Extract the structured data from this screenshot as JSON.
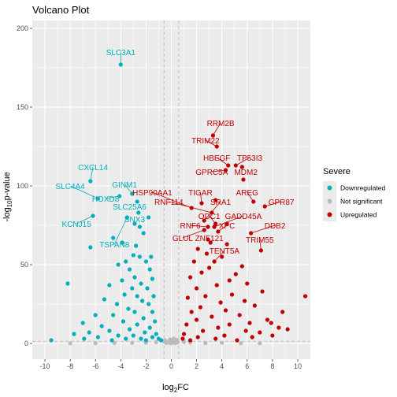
{
  "chart_data": {
    "type": "scatter",
    "title": "Volcano Plot",
    "xlabel": "log2FC",
    "ylabel": "-log10p-value",
    "xlim": [
      -11,
      11
    ],
    "ylim": [
      -10,
      205
    ],
    "x_ticks": [
      -10,
      -8,
      -6,
      -4,
      -2,
      0,
      2,
      4,
      6,
      8,
      10
    ],
    "y_ticks": [
      0,
      50,
      100,
      150,
      200
    ],
    "thresholds": {
      "log2fc": [
        -0.58,
        0.58
      ],
      "pvalue_line": 1.3
    },
    "grid": true,
    "legend": {
      "title": "Severe",
      "position": "right",
      "entries": [
        {
          "name": "Downregulated",
          "color": "#00AFBB"
        },
        {
          "name": "Not significant",
          "color": "#BBBBBB"
        },
        {
          "name": "Upregulated",
          "color": "#C00000"
        }
      ]
    },
    "colors": {
      "down": "#00AFBB",
      "ns": "#BBBBBB",
      "up": "#C00000",
      "panel": "#EBEBEB",
      "grid": "#FFFFFF"
    },
    "series": [
      {
        "name": "Downregulated",
        "color": "#00AFBB",
        "points": [
          [
            -4.0,
            177
          ],
          [
            -6.4,
            103
          ],
          [
            -3.1,
            95
          ],
          [
            -4.1,
            93.5
          ],
          [
            -5.8,
            92
          ],
          [
            -2.7,
            90
          ],
          [
            -6.2,
            81
          ],
          [
            -2.6,
            83
          ],
          [
            -3.5,
            80
          ],
          [
            -2.9,
            76
          ],
          [
            -6.4,
            61
          ],
          [
            -4.6,
            67
          ],
          [
            -2.5,
            74
          ],
          [
            -3.9,
            64
          ],
          [
            -2.8,
            62
          ],
          [
            -1.8,
            80
          ],
          [
            -2.2,
            70
          ],
          [
            -3.0,
            56
          ],
          [
            -2.5,
            55
          ],
          [
            -3.6,
            52
          ],
          [
            -4.2,
            50
          ],
          [
            -1.6,
            55
          ],
          [
            -2.0,
            52
          ],
          [
            -3.3,
            47
          ],
          [
            -1.7,
            47
          ],
          [
            -2.9,
            42
          ],
          [
            -3.9,
            40
          ],
          [
            -1.5,
            41
          ],
          [
            -2.4,
            38
          ],
          [
            -4.9,
            37
          ],
          [
            -3.1,
            35
          ],
          [
            -1.9,
            35
          ],
          [
            -2.7,
            30
          ],
          [
            -3.7,
            31
          ],
          [
            -1.4,
            30
          ],
          [
            -2.3,
            27
          ],
          [
            -5.3,
            28
          ],
          [
            -4.3,
            25
          ],
          [
            -1.8,
            25
          ],
          [
            -3.4,
            22
          ],
          [
            -2.9,
            20
          ],
          [
            -1.5,
            20
          ],
          [
            -6.0,
            18
          ],
          [
            -4.6,
            18
          ],
          [
            -2.2,
            16
          ],
          [
            -3.8,
            14
          ],
          [
            -1.3,
            14
          ],
          [
            -7.0,
            13
          ],
          [
            -2.7,
            12
          ],
          [
            -5.5,
            11
          ],
          [
            -1.7,
            10
          ],
          [
            -3.3,
            9
          ],
          [
            -4.9,
            8
          ],
          [
            -2.1,
            7
          ],
          [
            -8.2,
            38
          ],
          [
            -1.2,
            6
          ],
          [
            -6.5,
            7
          ],
          [
            -3.0,
            5
          ],
          [
            -1.5,
            4
          ],
          [
            -4.2,
            5
          ],
          [
            -7.7,
            6
          ],
          [
            -2.4,
            3
          ],
          [
            -5.8,
            4
          ],
          [
            -1.0,
            3
          ],
          [
            -3.6,
            3
          ],
          [
            -0.8,
            2
          ],
          [
            -9.5,
            2
          ],
          [
            -6.9,
            3
          ],
          [
            -2.0,
            2
          ],
          [
            -4.7,
            2
          ]
        ]
      },
      {
        "name": "Upregulated",
        "color": "#C00000",
        "points": [
          [
            3.3,
            132
          ],
          [
            3.6,
            125
          ],
          [
            4.5,
            113
          ],
          [
            5.1,
            113
          ],
          [
            5.6,
            112
          ],
          [
            4.3,
            110
          ],
          [
            5.7,
            104
          ],
          [
            6.5,
            90
          ],
          [
            7.4,
            87
          ],
          [
            3.5,
            91
          ],
          [
            2.4,
            89
          ],
          [
            1.6,
            86
          ],
          [
            3.2,
            83
          ],
          [
            2.6,
            78
          ],
          [
            3.5,
            76
          ],
          [
            3.4,
            74
          ],
          [
            2.9,
            74
          ],
          [
            4.4,
            76
          ],
          [
            2.6,
            72
          ],
          [
            3.7,
            71
          ],
          [
            6.3,
            70
          ],
          [
            2.9,
            66
          ],
          [
            3.1,
            64
          ],
          [
            4.4,
            63
          ],
          [
            7.1,
            59
          ],
          [
            3.4,
            52
          ],
          [
            10.6,
            30
          ],
          [
            5.6,
            49
          ],
          [
            7.9,
            13
          ],
          [
            8.5,
            10
          ],
          [
            2.1,
            60
          ],
          [
            2.8,
            57
          ],
          [
            4.0,
            55
          ],
          [
            1.8,
            52
          ],
          [
            3.0,
            48
          ],
          [
            5.1,
            44
          ],
          [
            2.4,
            45
          ],
          [
            4.6,
            40
          ],
          [
            1.5,
            42
          ],
          [
            6.0,
            38
          ],
          [
            3.6,
            37
          ],
          [
            2.0,
            35
          ],
          [
            7.2,
            33
          ],
          [
            4.8,
            31
          ],
          [
            2.7,
            30
          ],
          [
            1.3,
            29
          ],
          [
            5.8,
            27
          ],
          [
            3.9,
            26
          ],
          [
            6.6,
            24
          ],
          [
            2.3,
            23
          ],
          [
            4.3,
            21
          ],
          [
            8.8,
            20
          ],
          [
            1.6,
            20
          ],
          [
            5.4,
            18
          ],
          [
            3.2,
            17
          ],
          [
            7.6,
            15
          ],
          [
            2.0,
            15
          ],
          [
            6.2,
            13
          ],
          [
            4.6,
            12
          ],
          [
            1.2,
            12
          ],
          [
            9.2,
            9
          ],
          [
            3.7,
            10
          ],
          [
            5.9,
            8
          ],
          [
            2.5,
            8
          ],
          [
            7.0,
            7
          ],
          [
            1.0,
            6
          ],
          [
            4.2,
            5
          ],
          [
            8.0,
            5
          ],
          [
            2.1,
            4
          ],
          [
            6.4,
            4
          ],
          [
            0.9,
            3
          ],
          [
            3.5,
            3
          ],
          [
            5.2,
            2
          ],
          [
            1.5,
            2
          ]
        ]
      },
      {
        "name": "Not significant",
        "color": "#BBBBBB",
        "points": [
          [
            -0.5,
            2
          ],
          [
            -0.3,
            1
          ],
          [
            0.1,
            0.5
          ],
          [
            0.4,
            1.5
          ],
          [
            0.2,
            3
          ],
          [
            -0.1,
            2.5
          ],
          [
            0.5,
            0.8
          ],
          [
            -0.4,
            0.3
          ],
          [
            0.0,
            1.2
          ],
          [
            0.3,
            0.2
          ],
          [
            -0.2,
            0.6
          ],
          [
            0.45,
            2.2
          ],
          [
            -0.55,
            1.0
          ],
          [
            0.15,
            1.8
          ],
          [
            -0.05,
            0.1
          ],
          [
            -2.0,
            0.5
          ],
          [
            1.5,
            0.6
          ],
          [
            -3.1,
            0.4
          ],
          [
            2.7,
            0.3
          ],
          [
            -1.2,
            0.8
          ],
          [
            1.0,
            0.9
          ],
          [
            -4.5,
            0.3
          ],
          [
            4.0,
            0.4
          ],
          [
            -6.0,
            0.2
          ],
          [
            5.5,
            0.2
          ],
          [
            -8.0,
            0.1
          ],
          [
            7.0,
            0.1
          ]
        ]
      }
    ],
    "annotations": [
      {
        "label": "SLC3A1",
        "gene_x": -4.0,
        "gene_y": 177,
        "text_x": -4.0,
        "text_y": 183,
        "group": "down",
        "anchor": "middle"
      },
      {
        "label": "CXCL14",
        "gene_x": -6.4,
        "gene_y": 103,
        "text_x": -6.2,
        "text_y": 110,
        "group": "down",
        "anchor": "middle"
      },
      {
        "label": "SLC4A4",
        "gene_x": -5.8,
        "gene_y": 92,
        "text_x": -8.0,
        "text_y": 98,
        "group": "down",
        "anchor": "middle"
      },
      {
        "label": "GINM1",
        "gene_x": -3.1,
        "gene_y": 95,
        "text_x": -3.7,
        "text_y": 99,
        "group": "down",
        "anchor": "middle"
      },
      {
        "label": "HOXD8",
        "gene_x": -4.1,
        "gene_y": 93.5,
        "text_x": -5.2,
        "text_y": 90,
        "group": "down",
        "anchor": "middle"
      },
      {
        "label": "SLC25A6",
        "gene_x": -2.7,
        "gene_y": 90,
        "text_x": -3.3,
        "text_y": 85,
        "group": "down",
        "anchor": "middle"
      },
      {
        "label": "KCNJ15",
        "gene_x": -6.2,
        "gene_y": 81,
        "text_x": -7.5,
        "text_y": 74,
        "group": "down",
        "anchor": "middle"
      },
      {
        "label": "SNX3",
        "gene_x": -2.6,
        "gene_y": 83,
        "text_x": -2.9,
        "text_y": 77,
        "group": "down",
        "anchor": "middle"
      },
      {
        "label": "TSPAN8",
        "gene_x": -3.5,
        "gene_y": 80,
        "text_x": -4.5,
        "text_y": 61,
        "group": "down",
        "anchor": "middle"
      },
      {
        "label": "RRM2B",
        "gene_x": 3.3,
        "gene_y": 132,
        "text_x": 3.9,
        "text_y": 138,
        "group": "up",
        "anchor": "middle"
      },
      {
        "label": "TRIM22",
        "gene_x": 3.6,
        "gene_y": 125,
        "text_x": 2.7,
        "text_y": 127,
        "group": "up",
        "anchor": "middle"
      },
      {
        "label": "HBEGF",
        "gene_x": 4.5,
        "gene_y": 113,
        "text_x": 3.6,
        "text_y": 116,
        "group": "up",
        "anchor": "middle"
      },
      {
        "label": "TP53I3",
        "gene_x": 5.1,
        "gene_y": 113,
        "text_x": 6.2,
        "text_y": 116,
        "group": "up",
        "anchor": "middle"
      },
      {
        "label": "GPRC5A",
        "gene_x": 4.3,
        "gene_y": 110,
        "text_x": 3.2,
        "text_y": 107,
        "group": "up",
        "anchor": "middle"
      },
      {
        "label": "MDM2",
        "gene_x": 5.7,
        "gene_y": 104,
        "text_x": 5.9,
        "text_y": 107,
        "group": "up",
        "anchor": "middle"
      },
      {
        "label": "HSP90AA1",
        "gene_x": 1.6,
        "gene_y": 86,
        "text_x": -1.5,
        "text_y": 94,
        "group": "up",
        "anchor": "middle"
      },
      {
        "label": "TIGAR",
        "gene_x": 2.4,
        "gene_y": 89,
        "text_x": 2.3,
        "text_y": 94,
        "group": "up",
        "anchor": "middle"
      },
      {
        "label": "AREG",
        "gene_x": 6.5,
        "gene_y": 90,
        "text_x": 6.0,
        "text_y": 94,
        "group": "up",
        "anchor": "middle"
      },
      {
        "label": "RNF114",
        "gene_x": 3.2,
        "gene_y": 83,
        "text_x": -0.2,
        "text_y": 88,
        "group": "up",
        "anchor": "middle"
      },
      {
        "label": "SRA1",
        "gene_x": 2.6,
        "gene_y": 78,
        "text_x": 3.9,
        "text_y": 88,
        "group": "up",
        "anchor": "middle"
      },
      {
        "label": "GPR87",
        "gene_x": 7.4,
        "gene_y": 87,
        "text_x": 8.7,
        "text_y": 88,
        "group": "up",
        "anchor": "middle"
      },
      {
        "label": "ODC1",
        "gene_x": 3.5,
        "gene_y": 76,
        "text_x": 3.0,
        "text_y": 79,
        "group": "up",
        "anchor": "middle"
      },
      {
        "label": "GADD45A",
        "gene_x": 3.4,
        "gene_y": 74,
        "text_x": 5.7,
        "text_y": 79,
        "group": "up",
        "anchor": "middle"
      },
      {
        "label": "RNF6",
        "gene_x": 2.9,
        "gene_y": 74,
        "text_x": 1.5,
        "text_y": 73,
        "group": "up",
        "anchor": "middle"
      },
      {
        "label": "XPC",
        "gene_x": 3.7,
        "gene_y": 71,
        "text_x": 4.4,
        "text_y": 73,
        "group": "up",
        "anchor": "middle"
      },
      {
        "label": "DDB2",
        "gene_x": 6.3,
        "gene_y": 70,
        "text_x": 8.2,
        "text_y": 73,
        "group": "up",
        "anchor": "middle"
      },
      {
        "label": "GLUL",
        "gene_x": 2.6,
        "gene_y": 72,
        "text_x": 0.9,
        "text_y": 65,
        "group": "up",
        "anchor": "middle"
      },
      {
        "label": "ZNF121",
        "gene_x": 3.1,
        "gene_y": 64,
        "text_x": 3.0,
        "text_y": 65,
        "group": "up",
        "anchor": "middle"
      },
      {
        "label": "TRIM55",
        "gene_x": 7.1,
        "gene_y": 59,
        "text_x": 7.0,
        "text_y": 64,
        "group": "up",
        "anchor": "middle"
      },
      {
        "label": "TENT5A",
        "gene_x": 3.4,
        "gene_y": 52,
        "text_x": 4.2,
        "text_y": 57,
        "group": "up",
        "anchor": "middle"
      }
    ]
  }
}
